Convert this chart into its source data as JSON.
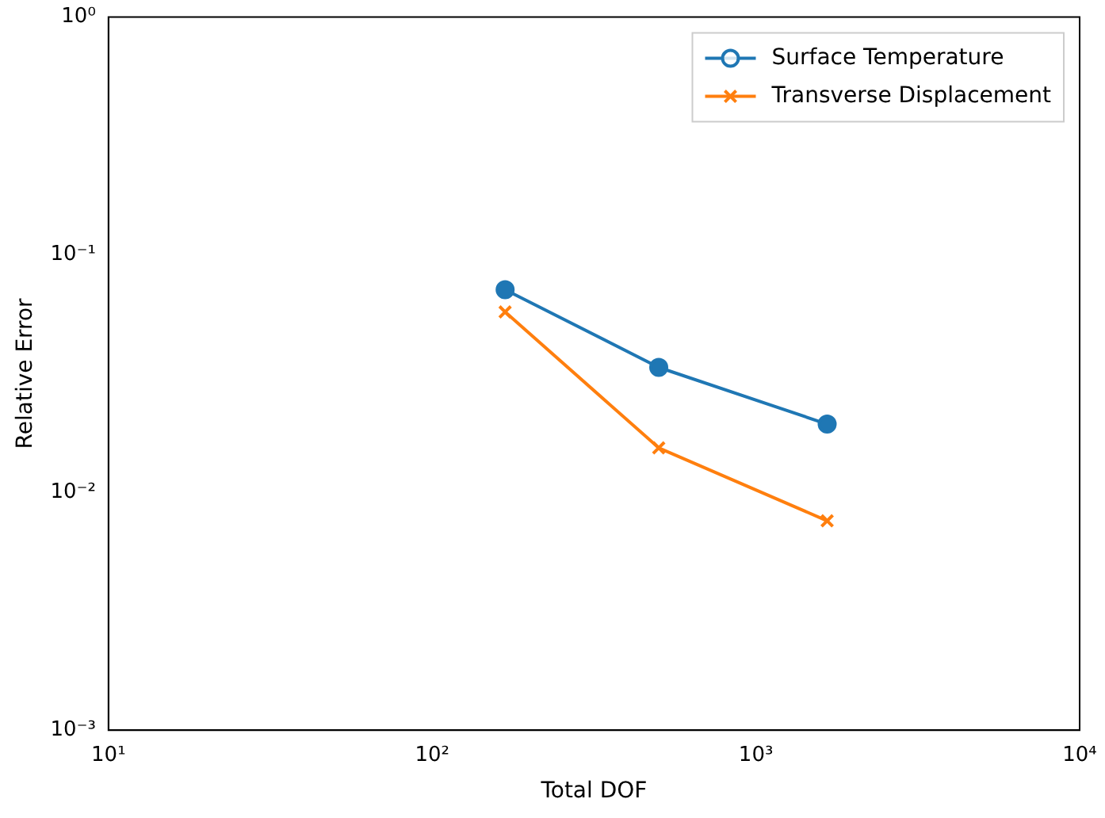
{
  "chart_data": {
    "type": "line",
    "xlabel": "Total DOF",
    "ylabel": "Relative Error",
    "log": "xy",
    "grid": false,
    "legend": "top right",
    "xlim": [
      10,
      10000
    ],
    "xticks": [
      {
        "value": 10,
        "label": "10¹"
      },
      {
        "value": 100,
        "label": "10²"
      },
      {
        "value": 1000,
        "label": "10³"
      },
      {
        "value": 10000,
        "label": "10⁴"
      }
    ],
    "ylim": [
      0.001,
      1
    ],
    "yticks": [
      {
        "value": 0.001,
        "label": "10⁻³"
      },
      {
        "value": 0.01,
        "label": "10⁻²"
      },
      {
        "value": 0.1,
        "label": "10⁻¹"
      },
      {
        "value": 1,
        "label": "10⁰"
      }
    ],
    "x": [
      168,
      501,
      1660
    ],
    "series": [
      {
        "name": "Surface Temperature",
        "color": "#1f77b4",
        "marker": "circle",
        "values": [
          0.0713,
          0.0336,
          0.0194
        ]
      },
      {
        "name": "Transverse Displacement",
        "color": "#ff7f0e",
        "marker": "cross",
        "values": [
          0.0575,
          0.0154,
          0.0076
        ]
      }
    ]
  }
}
